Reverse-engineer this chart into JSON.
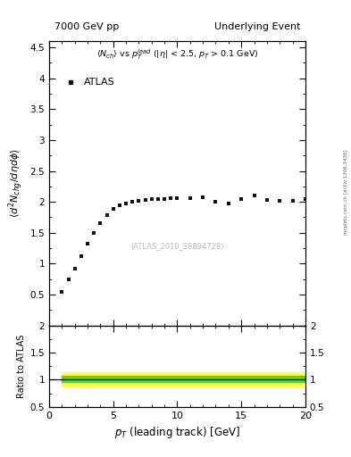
{
  "title_left": "7000 GeV pp",
  "title_right": "Underlying Event",
  "ylabel_main": "$\\langle d^2 N_{chg}/d\\eta d\\phi \\rangle$",
  "ylabel_ratio": "Ratio to ATLAS",
  "xlabel": "$p_T$ (leading track) [GeV]",
  "watermark": "(ATLAS_2010_S8894728)",
  "side_label": "mcplots.cern.ch [arXiv:1306.3436]",
  "atlas_label": "ATLAS",
  "data_x": [
    1.0,
    1.5,
    2.0,
    2.5,
    3.0,
    3.5,
    4.0,
    4.5,
    5.0,
    5.5,
    6.0,
    6.5,
    7.0,
    7.5,
    8.0,
    8.5,
    9.0,
    9.5,
    10.0,
    11.0,
    12.0,
    13.0,
    14.0,
    15.0,
    16.0,
    17.0,
    18.0,
    19.0,
    20.0
  ],
  "data_y": [
    0.55,
    0.75,
    0.92,
    1.12,
    1.32,
    1.5,
    1.65,
    1.78,
    1.88,
    1.94,
    1.98,
    2.0,
    2.02,
    2.03,
    2.04,
    2.05,
    2.05,
    2.06,
    2.06,
    2.06,
    2.07,
    2.0,
    1.98,
    2.05,
    2.1,
    2.03,
    2.01,
    2.02,
    2.04
  ],
  "ylim_main": [
    0,
    4.6
  ],
  "ylim_ratio": [
    0.5,
    2.0
  ],
  "xlim": [
    0,
    20
  ],
  "ratio_band_green_lo": 0.95,
  "ratio_band_green_hi": 1.07,
  "ratio_band_yellow_lo": 0.88,
  "ratio_band_yellow_hi": 1.13,
  "ratio_line": 1.0,
  "marker_color": "#111111",
  "marker_style": "s",
  "marker_size": 3.5,
  "bg_color": "#ffffff",
  "ratio_x_start": 1.0,
  "ratio_x_end": 20.0,
  "yticks_main": [
    0.0,
    0.5,
    1.0,
    1.5,
    2.0,
    2.5,
    3.0,
    3.5,
    4.0,
    4.5
  ],
  "yticks_ratio": [
    0.5,
    1.0,
    1.5,
    2.0
  ]
}
